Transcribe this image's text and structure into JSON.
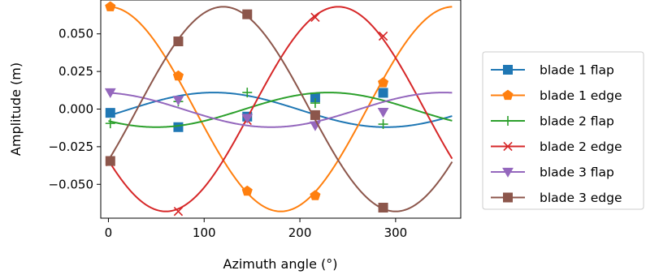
{
  "chart_data": {
    "type": "line",
    "title": "",
    "xlabel": "Azimuth angle (°)",
    "ylabel": "Amplitude (m)",
    "xlim": [
      -8,
      368
    ],
    "ylim": [
      -0.0725,
      0.0725
    ],
    "xticks": [
      0,
      100,
      200,
      300
    ],
    "yticks": [
      0.05,
      0.025,
      0.0,
      -0.025,
      -0.05
    ],
    "xtick_labels": [
      "0",
      "100",
      "200",
      "300"
    ],
    "ytick_labels": [
      "0.050",
      "0.025",
      "0.000",
      "−0.025",
      "−0.050"
    ],
    "grid": false,
    "legend_position": "outside-right",
    "marker_x": [
      2,
      73,
      145,
      216,
      287
    ],
    "series": [
      {
        "name": "blade 1 flap",
        "color": "#1f77b4",
        "marker": "square",
        "amp": 0.0115,
        "phase_deg": 110,
        "offset": -0.0005,
        "marker_values": [
          -0.0025,
          -0.012,
          -0.005,
          0.0078,
          0.0108
        ]
      },
      {
        "name": "blade 1 edge",
        "color": "#ff7f0e",
        "marker": "pentagon",
        "amp": 0.068,
        "phase_deg": 0,
        "offset": 0.0,
        "marker_values": [
          0.068,
          0.022,
          -0.0545,
          -0.0575,
          0.0175
        ]
      },
      {
        "name": "blade 2 flap",
        "color": "#2ca02c",
        "marker": "plus",
        "amp": 0.0115,
        "phase_deg": 230,
        "offset": -0.0005,
        "marker_values": [
          -0.0095,
          0.005,
          0.011,
          0.004,
          -0.01
        ]
      },
      {
        "name": "blade 2 edge",
        "color": "#d62728",
        "marker": "x",
        "amp": 0.068,
        "phase_deg": 240,
        "offset": 0.0,
        "marker_values": [
          -0.035,
          -0.068,
          -0.0075,
          0.061,
          0.0485
        ]
      },
      {
        "name": "blade 3 flap",
        "color": "#9467bd",
        "marker": "triangle-down",
        "amp": 0.0115,
        "phase_deg": 350,
        "offset": -0.0005,
        "marker_values": [
          0.011,
          0.006,
          -0.006,
          -0.011,
          -0.002
        ]
      },
      {
        "name": "blade 3 edge",
        "color": "#8c564b",
        "marker": "square",
        "amp": 0.068,
        "phase_deg": 120,
        "offset": 0.0,
        "marker_values": [
          -0.0345,
          0.045,
          0.063,
          -0.004,
          -0.0655
        ]
      }
    ]
  }
}
